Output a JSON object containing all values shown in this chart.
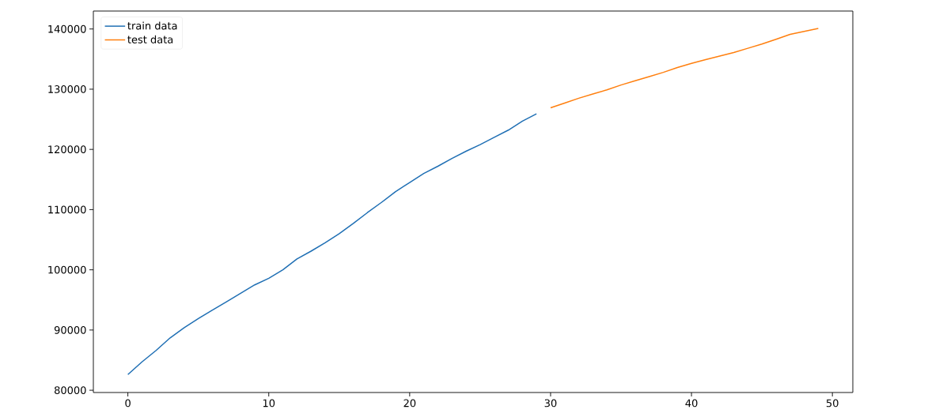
{
  "chart_data": {
    "type": "line",
    "xlim": [
      -2.45,
      51.45
    ],
    "ylim": [
      79620,
      142980
    ],
    "xticks": [
      0,
      10,
      20,
      30,
      40,
      50
    ],
    "yticks": [
      80000,
      90000,
      100000,
      110000,
      120000,
      130000,
      140000
    ],
    "legend": "top left",
    "grid": false,
    "marker": "none",
    "line_style": "solid",
    "series": [
      {
        "name": "train data",
        "color": "#1f6fb4",
        "x": [
          0,
          1,
          2,
          3,
          4,
          5,
          6,
          7,
          8,
          9,
          10,
          11,
          12,
          13,
          14,
          15,
          16,
          17,
          18,
          19,
          20,
          21,
          22,
          23,
          24,
          25,
          26,
          27,
          28,
          29
        ],
        "values": [
          82600,
          84700,
          86600,
          88700,
          90400,
          91900,
          93300,
          94700,
          96100,
          97500,
          98600,
          100000,
          101800,
          103100,
          104500,
          106000,
          107700,
          109500,
          111200,
          113000,
          114500,
          116000,
          117200,
          118500,
          119700,
          120800,
          122000,
          123200,
          124700,
          125900
        ]
      },
      {
        "name": "test data",
        "color": "#ff7f0e",
        "x": [
          30,
          31,
          32,
          33,
          34,
          35,
          36,
          37,
          38,
          39,
          40,
          41,
          42,
          43,
          44,
          45,
          46,
          47,
          48,
          49
        ],
        "values": [
          126900,
          127700,
          128500,
          129200,
          129900,
          130700,
          131400,
          132100,
          132800,
          133600,
          134300,
          134900,
          135500,
          136100,
          136800,
          137500,
          138300,
          139100,
          139600,
          140100
        ]
      }
    ]
  }
}
